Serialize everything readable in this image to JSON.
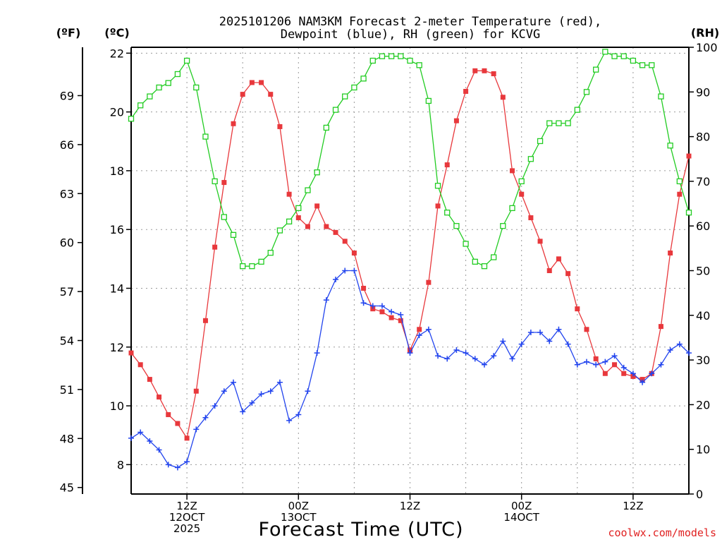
{
  "title_line1": "2025101206 NAM3KM Forecast 2-meter Temperature (red),",
  "title_line2": "Dewpoint (blue), RH (green) for KCVG",
  "units": {
    "fahrenheit": "(ºF)",
    "celsius": "(ºC)",
    "rh": "(RH)"
  },
  "x_axis_title": "Forecast Time (UTC)",
  "credit": "coolwx.com/models",
  "colors": {
    "temperature": "#e8383c",
    "dewpoint": "#2244ee",
    "rh": "#22cc22",
    "grid": "#9a9a9a"
  },
  "chart_data": {
    "type": "line",
    "title": "2025101206 NAM3KM Forecast 2-meter Temperature (red), Dewpoint (blue), RH (green) for KCVG",
    "xlabel": "Forecast Time (UTC)",
    "x_unit": "forecast hour",
    "x": [
      0,
      1,
      2,
      3,
      4,
      5,
      6,
      7,
      8,
      9,
      10,
      11,
      12,
      13,
      14,
      15,
      16,
      17,
      18,
      19,
      20,
      21,
      22,
      23,
      24,
      25,
      26,
      27,
      28,
      29,
      30,
      31,
      32,
      33,
      34,
      35,
      36,
      37,
      38,
      39,
      40,
      41,
      42,
      43,
      44,
      45,
      46,
      47,
      48,
      49,
      50,
      51,
      52,
      53,
      54,
      55,
      56,
      57,
      58,
      59,
      60
    ],
    "xlim": [
      0,
      60
    ],
    "x_ticks": [
      {
        "x": 6,
        "lines": [
          "12Z",
          "12OCT",
          "2025"
        ]
      },
      {
        "x": 18,
        "lines": [
          "00Z",
          "13OCT"
        ]
      },
      {
        "x": 30,
        "lines": [
          "12Z"
        ]
      },
      {
        "x": 42,
        "lines": [
          "00Z",
          "14OCT"
        ]
      },
      {
        "x": 54,
        "lines": [
          "12Z"
        ]
      }
    ],
    "left_axis_c": {
      "label": "(ºC)",
      "ylim": [
        7.0,
        22.2
      ],
      "ticks": [
        8,
        10,
        12,
        14,
        16,
        18,
        20,
        22
      ]
    },
    "left_axis_f": {
      "label": "(ºF)",
      "ticks": [
        45,
        48,
        51,
        54,
        57,
        60,
        63,
        66,
        69
      ]
    },
    "right_axis_rh": {
      "label": "(RH)",
      "ylim": [
        0,
        100
      ],
      "ticks": [
        0,
        10,
        20,
        30,
        40,
        50,
        60,
        70,
        80,
        90,
        100
      ]
    },
    "series": [
      {
        "name": "2-meter Temperature",
        "axis": "C",
        "color": "#e8383c",
        "marker": "filled-square",
        "values": [
          11.8,
          11.4,
          10.9,
          10.3,
          9.7,
          9.4,
          8.9,
          10.5,
          12.9,
          15.4,
          17.6,
          19.6,
          20.6,
          21.0,
          21.0,
          20.6,
          19.5,
          17.2,
          16.4,
          16.1,
          16.8,
          16.1,
          15.9,
          15.6,
          15.2,
          14.0,
          13.3,
          13.2,
          13.0,
          12.9,
          11.9,
          12.6,
          14.2,
          16.8,
          18.2,
          19.7,
          20.7,
          21.4,
          21.4,
          21.3,
          20.5,
          18.0,
          17.2,
          16.4,
          15.6,
          14.6,
          15.0,
          14.5,
          13.3,
          12.6,
          11.6,
          11.1,
          11.4,
          11.1,
          11.0,
          10.9,
          11.1,
          12.7,
          15.2,
          17.2,
          18.5
        ]
      },
      {
        "name": "Dewpoint",
        "axis": "C",
        "color": "#2244ee",
        "marker": "plus",
        "values": [
          8.9,
          9.1,
          8.8,
          8.5,
          8.0,
          7.9,
          8.1,
          9.2,
          9.6,
          10.0,
          10.5,
          10.8,
          9.8,
          10.1,
          10.4,
          10.5,
          10.8,
          9.5,
          9.7,
          10.5,
          11.8,
          13.6,
          14.3,
          14.6,
          14.6,
          13.5,
          13.4,
          13.4,
          13.2,
          13.1,
          11.8,
          12.4,
          12.6,
          11.7,
          11.6,
          11.9,
          11.8,
          11.6,
          11.4,
          11.7,
          12.2,
          11.6,
          12.1,
          12.5,
          12.5,
          12.2,
          12.6,
          12.1,
          11.4,
          11.5,
          11.4,
          11.5,
          11.7,
          11.3,
          11.1,
          10.8,
          11.1,
          11.4,
          11.9,
          12.1,
          11.8
        ]
      },
      {
        "name": "Relative Humidity",
        "axis": "RH",
        "color": "#22cc22",
        "marker": "open-square",
        "values": [
          84,
          87,
          89,
          91,
          92,
          94,
          97,
          91,
          80,
          70,
          62,
          58,
          51,
          51,
          52,
          54,
          59,
          61,
          64,
          68,
          72,
          82,
          86,
          89,
          91,
          93,
          97,
          98,
          98,
          98,
          97,
          96,
          88,
          69,
          63,
          60,
          56,
          52,
          51,
          53,
          60,
          64,
          70,
          75,
          79,
          83,
          83,
          83,
          86,
          90,
          95,
          99,
          98,
          98,
          97,
          96,
          96,
          89,
          78,
          70,
          63
        ]
      }
    ]
  }
}
